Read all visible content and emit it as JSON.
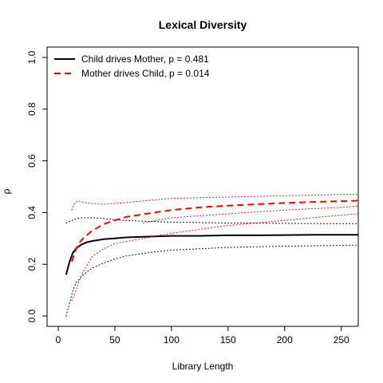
{
  "chart_data": {
    "type": "line",
    "title": "Lexical Diversity",
    "xlabel": "Library Length",
    "ylabel": "ρ",
    "xlim": [
      0,
      265
    ],
    "ylim": [
      0,
      1
    ],
    "xticks": [
      0,
      50,
      100,
      150,
      200,
      250
    ],
    "yticks": [
      0.0,
      0.2,
      0.4,
      0.6,
      0.8,
      1.0
    ],
    "xtick_labels": [
      "0",
      "50",
      "100",
      "150",
      "200",
      "250"
    ],
    "ytick_labels": [
      "0.0",
      "0.2",
      "0.4",
      "0.6",
      "0.8",
      "1.0"
    ],
    "legend_position": "top-left",
    "grid": false,
    "series": [
      {
        "name": "Child drives Mother, p = 0.481",
        "color": "#000000",
        "style": "solid",
        "x": [
          7,
          10,
          13,
          16,
          20,
          25,
          30,
          40,
          50,
          60,
          80,
          100,
          125,
          150,
          175,
          200,
          225,
          250,
          265
        ],
        "y": [
          0.16,
          0.21,
          0.245,
          0.262,
          0.275,
          0.285,
          0.29,
          0.297,
          0.3,
          0.304,
          0.307,
          0.31,
          0.31,
          0.312,
          0.312,
          0.313,
          0.314,
          0.314,
          0.314
        ]
      },
      {
        "name": "Mother drives Child, p = 0.014",
        "color": "#ff0000",
        "style": "dashed",
        "x": [
          12,
          15,
          18,
          22,
          26,
          30,
          40,
          50,
          60,
          80,
          100,
          125,
          150,
          175,
          200,
          225,
          250,
          265
        ],
        "y": [
          0.21,
          0.25,
          0.28,
          0.3,
          0.315,
          0.33,
          0.355,
          0.37,
          0.383,
          0.397,
          0.41,
          0.42,
          0.427,
          0.432,
          0.437,
          0.441,
          0.444,
          0.446
        ]
      },
      {
        "name": "",
        "color": "#000000",
        "style": "dotted",
        "x": [
          7,
          10,
          15,
          20,
          30,
          40,
          50,
          60,
          80,
          100,
          150,
          200,
          250,
          265
        ],
        "y": [
          0.36,
          0.365,
          0.375,
          0.38,
          0.38,
          0.377,
          0.372,
          0.369,
          0.366,
          0.363,
          0.36,
          0.358,
          0.357,
          0.357
        ]
      },
      {
        "name": "",
        "color": "#000000",
        "style": "dotted",
        "x": [
          7,
          10,
          13,
          16,
          20,
          25,
          30,
          40,
          50,
          60,
          80,
          100,
          150,
          200,
          250,
          265
        ],
        "y": [
          0.0,
          0.05,
          0.1,
          0.13,
          0.15,
          0.17,
          0.185,
          0.205,
          0.22,
          0.232,
          0.245,
          0.255,
          0.265,
          0.27,
          0.273,
          0.274
        ]
      },
      {
        "name": "",
        "color": "#ff0000",
        "style": "dotted",
        "x": [
          12,
          15,
          18,
          22,
          30,
          40,
          50,
          75,
          100,
          150,
          200,
          250,
          265
        ],
        "y": [
          0.41,
          0.44,
          0.445,
          0.44,
          0.435,
          0.432,
          0.435,
          0.445,
          0.455,
          0.46,
          0.465,
          0.47,
          0.47
        ]
      },
      {
        "name": "",
        "color": "#ff0000",
        "style": "dotted",
        "x": [
          12,
          15,
          18,
          22,
          26,
          30,
          40,
          50,
          75,
          100,
          150,
          200,
          250,
          265
        ],
        "y": [
          0.06,
          0.09,
          0.13,
          0.17,
          0.2,
          0.23,
          0.26,
          0.28,
          0.3,
          0.32,
          0.35,
          0.37,
          0.39,
          0.395
        ]
      },
      {
        "name": "",
        "color": "#ff0000",
        "style": "dotted",
        "x": [
          75,
          100,
          150,
          200,
          250,
          265
        ],
        "y": [
          0.36,
          0.38,
          0.395,
          0.41,
          0.42,
          0.425
        ]
      }
    ]
  }
}
